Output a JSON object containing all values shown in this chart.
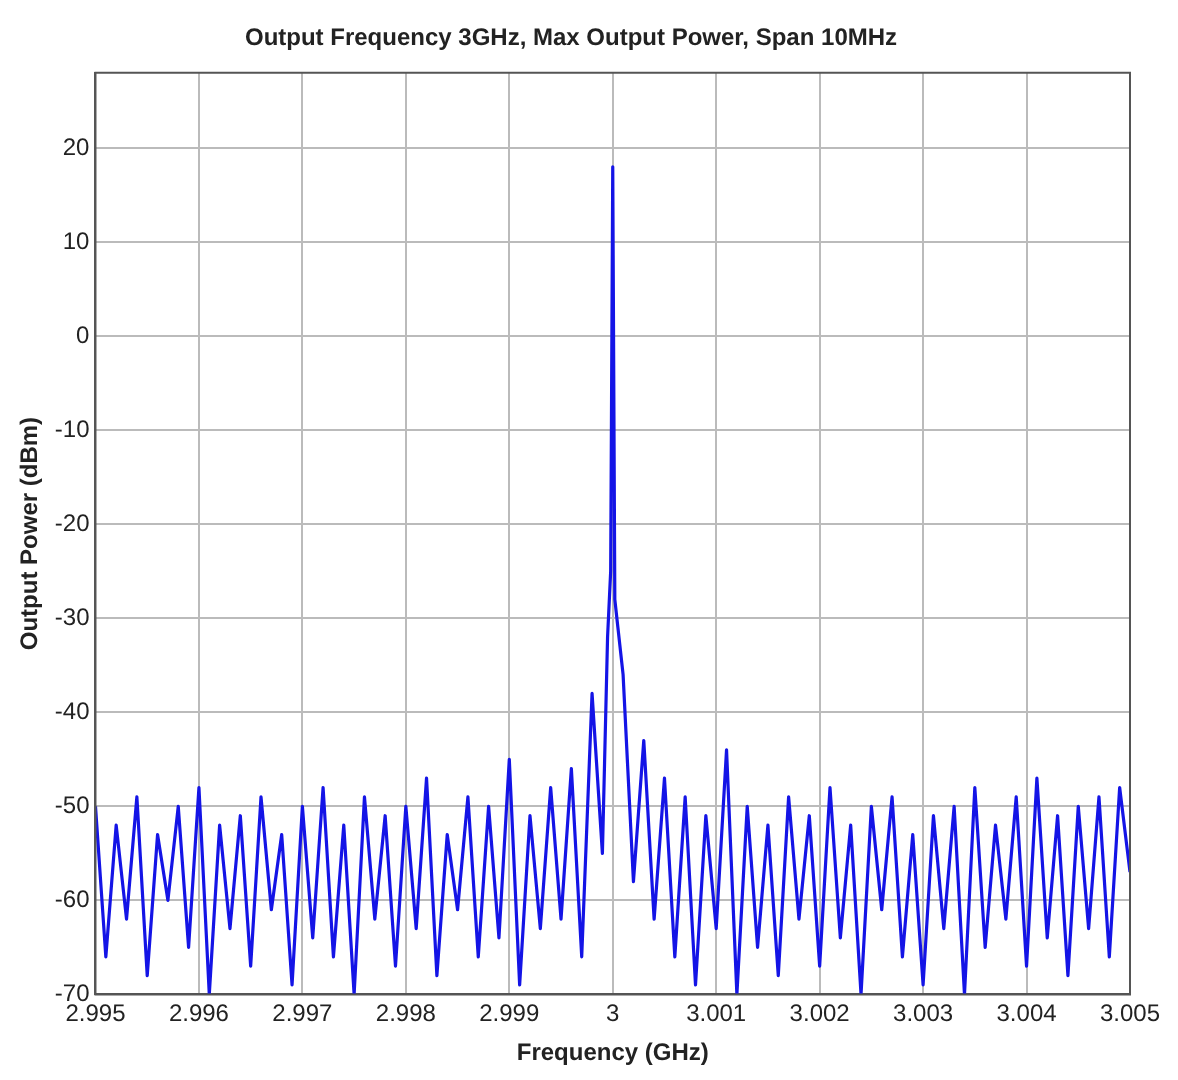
{
  "chart_data": {
    "type": "line",
    "title": "Output Frequency 3GHz, Max Output Power, Span 10MHz",
    "xlabel": "Frequency (GHz)",
    "ylabel": "Output Power (dBm)",
    "xlim": [
      2.995,
      3.005
    ],
    "xticks": [
      2.995,
      2.996,
      2.997,
      2.998,
      2.999,
      {
        "value": 3,
        "label": "3"
      },
      3.001,
      3.002,
      3.003,
      3.004,
      3.005
    ],
    "ylim": [
      -70,
      28
    ],
    "yticks": [
      -70,
      -60,
      -50,
      -40,
      -30,
      -20,
      -10,
      0,
      10,
      20
    ],
    "grid": true,
    "marker": "none",
    "line_style": "solid",
    "x": [
      2.995,
      2.9951,
      2.9952,
      2.9953,
      2.9954,
      2.9955,
      2.9956,
      2.9957,
      2.9958,
      2.9959,
      2.996,
      2.9961,
      2.9962,
      2.9963,
      2.9964,
      2.9965,
      2.9966,
      2.9967,
      2.9968,
      2.9969,
      2.997,
      2.9971,
      2.9972,
      2.9973,
      2.9974,
      2.9975,
      2.9976,
      2.9977,
      2.9978,
      2.9979,
      2.998,
      2.9981,
      2.9982,
      2.9983,
      2.9984,
      2.9985,
      2.9986,
      2.9987,
      2.9988,
      2.9989,
      2.999,
      2.9991,
      2.9992,
      2.9993,
      2.9994,
      2.9995,
      2.9996,
      2.9997,
      2.9998,
      2.9999,
      2.99995,
      2.99998,
      3,
      3.00002,
      3.00005,
      3.0001,
      3.0002,
      3.0003,
      3.0004,
      3.0005,
      3.0006,
      3.0007,
      3.0008,
      3.0009,
      3.001,
      3.0011,
      3.0012,
      3.0013,
      3.0014,
      3.0015,
      3.0016,
      3.0017,
      3.0018,
      3.0019,
      3.002,
      3.0021,
      3.0022,
      3.0023,
      3.0024,
      3.0025,
      3.0026,
      3.0027,
      3.0028,
      3.0029,
      3.003,
      3.0031,
      3.0032,
      3.0033,
      3.0034,
      3.0035,
      3.0036,
      3.0037,
      3.0038,
      3.0039,
      3.004,
      3.0041,
      3.0042,
      3.0043,
      3.0044,
      3.0045,
      3.0046,
      3.0047,
      3.0048,
      3.0049,
      3.005
    ],
    "series": [
      {
        "color": "#1414e6",
        "values": [
          -50,
          -66,
          -52,
          -62,
          -49,
          -68,
          -53,
          -60,
          -50,
          -65,
          -48,
          -70,
          -52,
          -63,
          -51,
          -67,
          -49,
          -61,
          -53,
          -69,
          -50,
          -64,
          -48,
          -66,
          -52,
          -70,
          -49,
          -62,
          -51,
          -67,
          -50,
          -63,
          -47,
          -68,
          -53,
          -61,
          -49,
          -66,
          -50,
          -64,
          -45,
          -69,
          -51,
          -63,
          -48,
          -62,
          -46,
          -66,
          -38,
          -55,
          -32,
          -25,
          18,
          -28,
          -31,
          -36,
          -58,
          -43,
          -62,
          -47,
          -66,
          -49,
          -69,
          -51,
          -63,
          -44,
          -70,
          -50,
          -65,
          -52,
          -68,
          -49,
          -62,
          -51,
          -67,
          -48,
          -64,
          -52,
          -70,
          -50,
          -61,
          -49,
          -66,
          -53,
          -69,
          -51,
          -63,
          -50,
          -70,
          -48,
          -65,
          -52,
          -62,
          -49,
          -67,
          -47,
          -64,
          -51,
          -68,
          -50,
          -63,
          -49,
          -66,
          -48,
          -57
        ]
      }
    ]
  }
}
